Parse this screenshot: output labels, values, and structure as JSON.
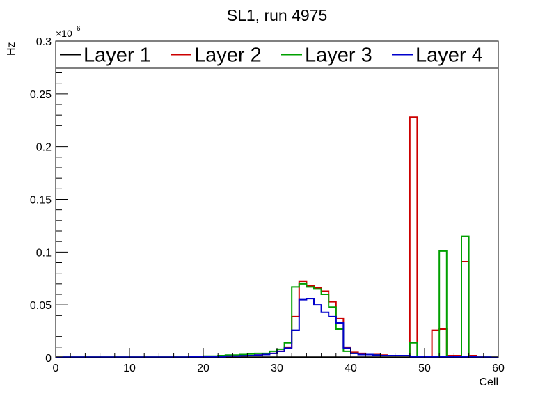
{
  "chart_data": {
    "type": "histogram",
    "title": "SL1, run 4975",
    "xlabel": "Cell",
    "ylabel": "Hz",
    "y_multiplier_label": "×10",
    "y_multiplier_exp": "6",
    "xlim": [
      0,
      60
    ],
    "ylim": [
      0,
      0.3
    ],
    "bin_width": 1,
    "x_ticks": [
      0,
      10,
      20,
      30,
      40,
      50,
      60
    ],
    "x_tick_labels": [
      "0",
      "10",
      "20",
      "30",
      "40",
      "50",
      "60"
    ],
    "y_ticks": [
      0,
      0.05,
      0.1,
      0.15,
      0.2,
      0.25,
      0.3
    ],
    "y_tick_labels": [
      "0",
      "0.05",
      "0.1",
      "0.15",
      "0.2",
      "0.25",
      "0.3"
    ],
    "grid": false,
    "legend_position": "top",
    "series": [
      {
        "name": "Layer 1",
        "color": "#000000",
        "values": [
          0.0005,
          0.0005,
          0.0005,
          0.0005,
          0.0005,
          0.0005,
          0.0005,
          0.0005,
          0.0005,
          0.0005,
          0.0005,
          0.0005,
          0.0005,
          0.0005,
          0.0005,
          0.0005,
          0.0005,
          0.0005,
          0.0005,
          0.0005,
          0.0005,
          0.0005,
          0.0005,
          0.0005,
          0.0005,
          0.0005,
          0.0005,
          0.0005,
          0.0005,
          0.0005,
          0.0005,
          0.0005,
          0.0005,
          0.0005,
          0.0005,
          0.0005,
          0.0005,
          0.0005,
          0.0005,
          0.0005,
          0.0005,
          0.0005,
          0.0005,
          0.0005,
          0.0005,
          0.0005,
          0.0005,
          0.0005,
          0.0005,
          0.0005,
          0.0005,
          0.0005,
          0.0005,
          0.0005,
          0.0005,
          0.0005,
          0.0005,
          0.0005,
          0.0005,
          0.0005
        ]
      },
      {
        "name": "Layer 2",
        "color": "#cc0000",
        "values": [
          0,
          0.0005,
          0.0005,
          0.0005,
          0.0005,
          0.0005,
          0.0005,
          0.0005,
          0.0005,
          0.0005,
          0.0005,
          0.0005,
          0.0005,
          0.0005,
          0.0005,
          0.0005,
          0.0005,
          0.0005,
          0.001,
          0.001,
          0.001,
          0.001,
          0.0012,
          0.0015,
          0.0015,
          0.0018,
          0.002,
          0.0025,
          0.003,
          0.004,
          0.006,
          0.01,
          0.039,
          0.072,
          0.068,
          0.066,
          0.063,
          0.053,
          0.037,
          0.01,
          0.005,
          0.004,
          0.003,
          0.003,
          0.0025,
          0.002,
          0.002,
          0.002,
          0.228,
          0.001,
          0.001,
          0.026,
          0.027,
          0.002,
          0.002,
          0.091,
          0.002,
          0.001,
          0.0005,
          0
        ]
      },
      {
        "name": "Layer 3",
        "color": "#00a000",
        "values": [
          0,
          0.0005,
          0.0005,
          0.0005,
          0.0005,
          0.0005,
          0.0005,
          0.0005,
          0.0005,
          0.0005,
          0.0005,
          0.0005,
          0.0005,
          0.0005,
          0.0005,
          0.0005,
          0.0005,
          0.0005,
          0.001,
          0.001,
          0.0015,
          0.0015,
          0.002,
          0.0025,
          0.0025,
          0.003,
          0.0035,
          0.004,
          0.004,
          0.006,
          0.008,
          0.014,
          0.067,
          0.07,
          0.067,
          0.065,
          0.06,
          0.048,
          0.027,
          0.006,
          0.004,
          0.003,
          0.003,
          0.0025,
          0.002,
          0.002,
          0.002,
          0.002,
          0.014,
          0.001,
          0.001,
          0.0,
          0.101,
          0.001,
          0.001,
          0.115,
          0.001,
          0.0005,
          0.0005,
          0
        ]
      },
      {
        "name": "Layer 4",
        "color": "#0000cc",
        "values": [
          0,
          0.0005,
          0.0005,
          0.0005,
          0.0005,
          0.0005,
          0.0005,
          0.0005,
          0.0005,
          0.0005,
          0.0005,
          0.0005,
          0.0005,
          0.0005,
          0.0005,
          0.0005,
          0.0005,
          0.0005,
          0.001,
          0.001,
          0.001,
          0.001,
          0.001,
          0.0015,
          0.0015,
          0.0018,
          0.002,
          0.0025,
          0.003,
          0.004,
          0.006,
          0.009,
          0.026,
          0.055,
          0.056,
          0.05,
          0.043,
          0.039,
          0.033,
          0.009,
          0.004,
          0.003,
          0.003,
          0.0025,
          0.002,
          0.002,
          0.002,
          0.002,
          0.001,
          0.001,
          0.001,
          0.001,
          0.001,
          0.001,
          0.001,
          0.001,
          0.001,
          0.0005,
          0.0005,
          0
        ]
      }
    ]
  }
}
